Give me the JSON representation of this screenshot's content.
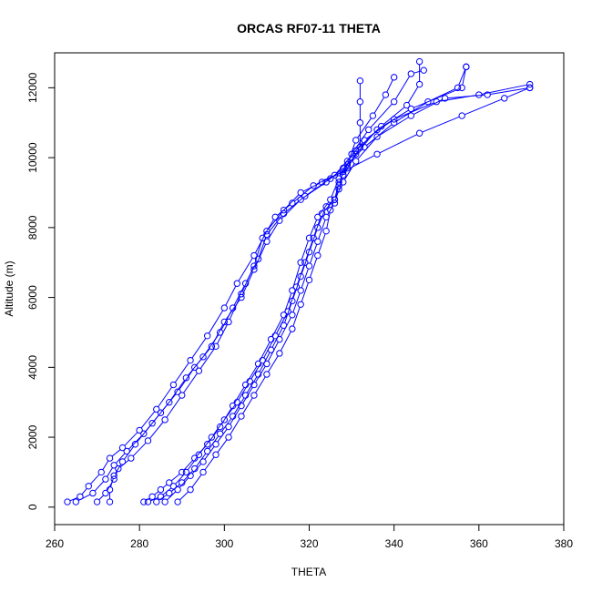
{
  "chart_data": {
    "type": "scatter",
    "title": "ORCAS RF07-11 THETA",
    "xlabel": "THETA",
    "ylabel": "Altitude (m)",
    "xlim": [
      260,
      380
    ],
    "ylim": [
      -500,
      13000
    ],
    "x_ticks": [
      "260",
      "280",
      "300",
      "320",
      "340",
      "360",
      "380"
    ],
    "y_ticks": [
      "0",
      "2000",
      "4000",
      "6000",
      "8000",
      "10000",
      "12000"
    ],
    "grid": false,
    "color": "#0000ff",
    "series": [
      {
        "points": [
          [
            263,
            150
          ],
          [
            266,
            300
          ],
          [
            268,
            600
          ],
          [
            271,
            1000
          ],
          [
            273,
            1400
          ],
          [
            276,
            1700
          ],
          [
            280,
            2200
          ],
          [
            284,
            2800
          ],
          [
            288,
            3500
          ],
          [
            292,
            4200
          ],
          [
            296,
            4900
          ],
          [
            300,
            5700
          ],
          [
            303,
            6400
          ],
          [
            307,
            7200
          ],
          [
            310,
            7900
          ],
          [
            314,
            8500
          ],
          [
            318,
            9000
          ],
          [
            323,
            9300
          ],
          [
            328,
            9600
          ],
          [
            336,
            10100
          ],
          [
            346,
            10700
          ],
          [
            356,
            11200
          ],
          [
            366,
            11700
          ],
          [
            372,
            12000
          ]
        ]
      },
      {
        "points": [
          [
            265,
            150
          ],
          [
            269,
            400
          ],
          [
            272,
            800
          ],
          [
            274,
            1200
          ],
          [
            277,
            1600
          ],
          [
            281,
            2100
          ],
          [
            285,
            2700
          ],
          [
            289,
            3300
          ],
          [
            293,
            4000
          ],
          [
            297,
            4600
          ],
          [
            300,
            5300
          ],
          [
            304,
            6000
          ],
          [
            307,
            6800
          ],
          [
            310,
            7600
          ],
          [
            313,
            8200
          ],
          [
            318,
            8800
          ],
          [
            324,
            9300
          ],
          [
            328,
            9700
          ],
          [
            333,
            10300
          ],
          [
            340,
            11000
          ],
          [
            348,
            11600
          ],
          [
            355,
            12000
          ],
          [
            357,
            12600
          ]
        ]
      },
      {
        "points": [
          [
            270,
            150
          ],
          [
            272,
            400
          ],
          [
            274,
            800
          ],
          [
            275,
            1100
          ],
          [
            278,
            1400
          ],
          [
            282,
            1900
          ],
          [
            286,
            2500
          ],
          [
            290,
            3200
          ],
          [
            294,
            3900
          ],
          [
            298,
            4600
          ],
          [
            301,
            5300
          ],
          [
            304,
            6100
          ],
          [
            307,
            6900
          ],
          [
            309,
            7700
          ],
          [
            312,
            8300
          ],
          [
            316,
            8700
          ],
          [
            321,
            9200
          ],
          [
            326,
            9500
          ],
          [
            331,
            10200
          ],
          [
            337,
            10900
          ],
          [
            343,
            11500
          ],
          [
            346,
            12100
          ],
          [
            346,
            12750
          ]
        ]
      },
      {
        "points": [
          [
            273,
            150
          ],
          [
            273,
            500
          ],
          [
            274,
            900
          ],
          [
            276,
            1300
          ],
          [
            279,
            1800
          ],
          [
            283,
            2400
          ],
          [
            287,
            3000
          ],
          [
            291,
            3700
          ],
          [
            295,
            4300
          ],
          [
            299,
            5000
          ],
          [
            302,
            5700
          ],
          [
            305,
            6400
          ],
          [
            308,
            7100
          ],
          [
            310,
            7800
          ],
          [
            314,
            8400
          ],
          [
            319,
            8900
          ],
          [
            325,
            9400
          ],
          [
            329,
            9700
          ],
          [
            332,
            10300
          ],
          [
            332,
            11000
          ],
          [
            332,
            11600
          ],
          [
            332,
            12200
          ]
        ]
      },
      {
        "points": [
          [
            281,
            150
          ],
          [
            283,
            300
          ],
          [
            285,
            500
          ],
          [
            287,
            700
          ],
          [
            290,
            1000
          ],
          [
            293,
            1400
          ],
          [
            296,
            1800
          ],
          [
            299,
            2300
          ],
          [
            302,
            2900
          ],
          [
            305,
            3500
          ],
          [
            308,
            4100
          ],
          [
            311,
            4800
          ],
          [
            314,
            5500
          ],
          [
            316,
            6200
          ],
          [
            318,
            7000
          ],
          [
            320,
            7700
          ],
          [
            322,
            8300
          ],
          [
            325,
            8800
          ],
          [
            327,
            9400
          ],
          [
            329,
            9900
          ],
          [
            333,
            10500
          ],
          [
            340,
            11100
          ],
          [
            350,
            11600
          ],
          [
            360,
            11800
          ],
          [
            372,
            12100
          ]
        ]
      },
      {
        "points": [
          [
            282,
            150
          ],
          [
            285,
            300
          ],
          [
            288,
            600
          ],
          [
            291,
            1000
          ],
          [
            294,
            1500
          ],
          [
            297,
            2000
          ],
          [
            300,
            2500
          ],
          [
            303,
            3000
          ],
          [
            306,
            3600
          ],
          [
            309,
            4200
          ],
          [
            312,
            4900
          ],
          [
            315,
            5600
          ],
          [
            317,
            6300
          ],
          [
            319,
            7000
          ],
          [
            321,
            7700
          ],
          [
            323,
            8400
          ],
          [
            326,
            8800
          ],
          [
            328,
            9300
          ],
          [
            331,
            9900
          ],
          [
            336,
            10600
          ],
          [
            344,
            11200
          ],
          [
            352,
            11700
          ],
          [
            362,
            11800
          ],
          [
            372,
            12000
          ]
        ]
      },
      {
        "points": [
          [
            284,
            150
          ],
          [
            287,
            400
          ],
          [
            290,
            700
          ],
          [
            293,
            1100
          ],
          [
            296,
            1600
          ],
          [
            299,
            2100
          ],
          [
            302,
            2600
          ],
          [
            305,
            3200
          ],
          [
            308,
            3800
          ],
          [
            311,
            4500
          ],
          [
            314,
            5200
          ],
          [
            316,
            5900
          ],
          [
            318,
            6600
          ],
          [
            320,
            7300
          ],
          [
            322,
            8000
          ],
          [
            324,
            8600
          ],
          [
            326,
            8800
          ],
          [
            327,
            9200
          ],
          [
            328,
            9500
          ],
          [
            331,
            10100
          ],
          [
            336,
            10800
          ],
          [
            344,
            11400
          ],
          [
            356,
            12000
          ],
          [
            357,
            12600
          ]
        ]
      },
      {
        "points": [
          [
            286,
            150
          ],
          [
            289,
            500
          ],
          [
            292,
            900
          ],
          [
            295,
            1300
          ],
          [
            298,
            1800
          ],
          [
            301,
            2300
          ],
          [
            304,
            2900
          ],
          [
            307,
            3500
          ],
          [
            310,
            4100
          ],
          [
            313,
            4800
          ],
          [
            316,
            5500
          ],
          [
            318,
            6200
          ],
          [
            320,
            6900
          ],
          [
            322,
            7600
          ],
          [
            324,
            8300
          ],
          [
            326,
            8700
          ],
          [
            327,
            9100
          ],
          [
            328,
            9500
          ],
          [
            330,
            10100
          ],
          [
            334,
            10800
          ],
          [
            340,
            11600
          ],
          [
            344,
            12400
          ],
          [
            347,
            12500
          ]
        ]
      },
      {
        "points": [
          [
            289,
            150
          ],
          [
            292,
            500
          ],
          [
            295,
            1000
          ],
          [
            298,
            1500
          ],
          [
            301,
            2000
          ],
          [
            304,
            2600
          ],
          [
            307,
            3200
          ],
          [
            310,
            3800
          ],
          [
            313,
            4400
          ],
          [
            316,
            5100
          ],
          [
            318,
            5800
          ],
          [
            320,
            6500
          ],
          [
            322,
            7200
          ],
          [
            324,
            7900
          ],
          [
            325,
            8500
          ],
          [
            326,
            8800
          ],
          [
            327,
            9300
          ],
          [
            329,
            9800
          ],
          [
            331,
            10500
          ],
          [
            335,
            11200
          ],
          [
            338,
            11800
          ],
          [
            340,
            12300
          ]
        ]
      }
    ]
  }
}
